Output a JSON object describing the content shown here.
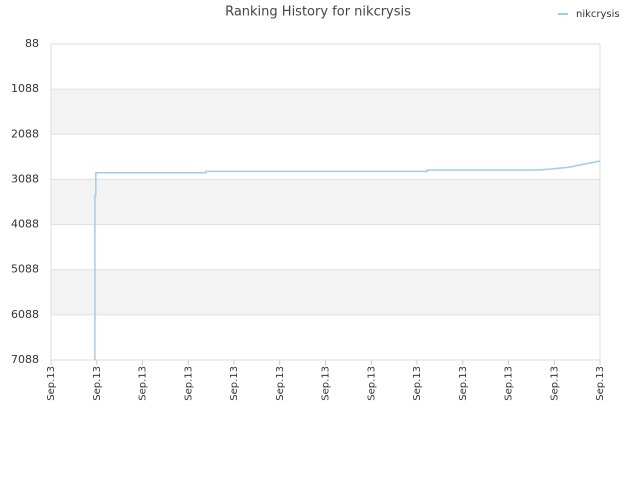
{
  "chart_data": {
    "type": "line",
    "title": "Ranking History for nikcrysis",
    "x": [
      0.96,
      0.96,
      0.98,
      0.98,
      3.39,
      3.39,
      8.22,
      8.22,
      10.69,
      11.3,
      12
    ],
    "series": [
      {
        "name": "nikcrysis",
        "color": "#a3cbef",
        "values": [
          7088,
          3430,
          3430,
          2940,
          2940,
          2910,
          2910,
          2880,
          2880,
          2820,
          2680
        ]
      }
    ],
    "xlim": [
      0,
      12
    ],
    "xticks": [
      {
        "value": 0,
        "label": "Sep.13"
      },
      {
        "value": 1,
        "label": "Sep.13"
      },
      {
        "value": 2,
        "label": "Sep.13"
      },
      {
        "value": 3,
        "label": "Sep.13"
      },
      {
        "value": 4,
        "label": "Sep.13"
      },
      {
        "value": 5,
        "label": "Sep.13"
      },
      {
        "value": 6,
        "label": "Sep.13"
      },
      {
        "value": 7,
        "label": "Sep.13"
      },
      {
        "value": 8,
        "label": "Sep.13"
      },
      {
        "value": 9,
        "label": "Sep.13"
      },
      {
        "value": 10,
        "label": "Sep.13"
      },
      {
        "value": 11,
        "label": "Sep.13"
      },
      {
        "value": 12,
        "label": "Sep.13"
      }
    ],
    "ylim": [
      7088,
      88
    ],
    "yticks": [
      88,
      1088,
      2088,
      3088,
      4088,
      5088,
      6088,
      7088
    ],
    "grid": true,
    "legend": "top-right"
  }
}
